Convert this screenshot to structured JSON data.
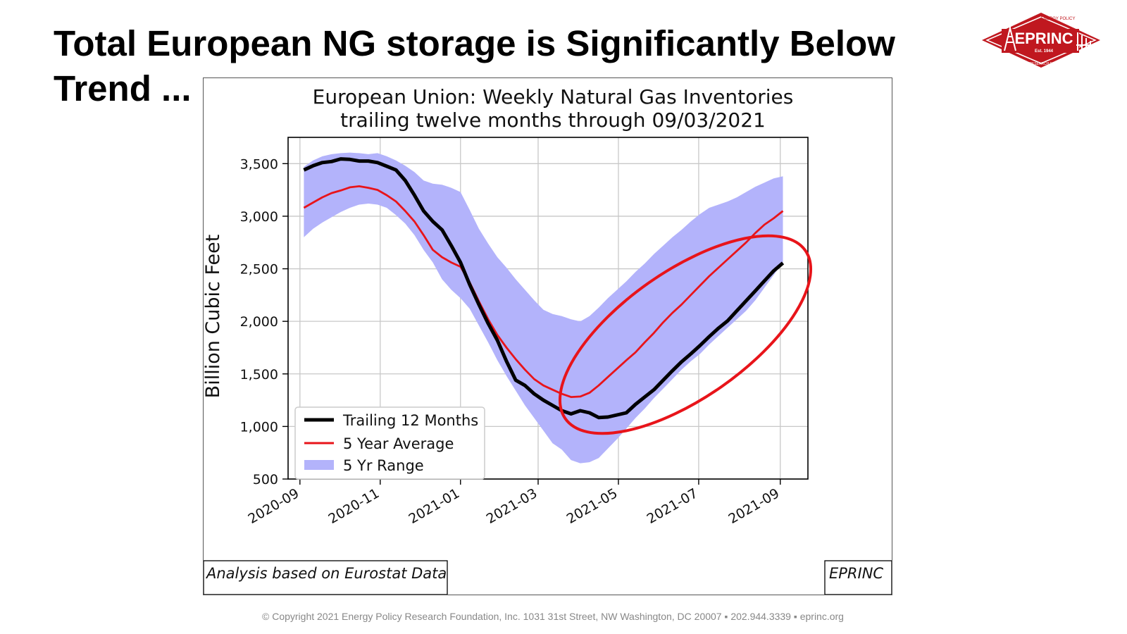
{
  "slide": {
    "title": "Total European NG storage is Significantly Below Trend ...",
    "footer": "© Copyright 2021 Energy Policy Research Foundation, Inc. 1031 31st Street, NW Washington, DC 20007 ▪ 202.944.3339 ▪ eprinc.org"
  },
  "logo": {
    "name": "EPRINC",
    "top_text": "ENERGY POLICY",
    "est": "Est. 1944",
    "bottom_text": "RESEARCH FOUNDATION INC.",
    "color": "#c0181f"
  },
  "figure": {
    "source_note": "Analysis based on Eurostat Data",
    "brand_note": "EPRINC"
  },
  "colors": {
    "trailing": "#000000",
    "average": "#e8141a",
    "range_fill": "#b3b3fb",
    "highlight_ellipse": "#e8141a"
  },
  "chart_data": {
    "type": "line",
    "title": "European Union: Weekly Natural Gas Inventories",
    "subtitle": "trailing twelve months through 09/03/2021",
    "ylabel": "Billion Cubic Feet",
    "xlabel": "",
    "ylim": [
      500,
      3750
    ],
    "xlim": [
      "2020-08-23",
      "2021-09-22"
    ],
    "yticks": [
      500,
      1000,
      1500,
      2000,
      2500,
      3000,
      3500
    ],
    "ytick_labels": [
      "500",
      "1,000",
      "1,500",
      "2,000",
      "2,500",
      "3,000",
      "3,500"
    ],
    "xticks": [
      "2020-09-01",
      "2020-11-01",
      "2021-01-01",
      "2021-03-01",
      "2021-05-01",
      "2021-07-01",
      "2021-09-01"
    ],
    "xtick_labels": [
      "2020-09",
      "2020-11",
      "2021-01",
      "2021-03",
      "2021-05",
      "2021-07",
      "2021-09"
    ],
    "grid": true,
    "legend_position": "lower-left",
    "dates": [
      "2020-09-04",
      "2020-09-11",
      "2020-09-18",
      "2020-09-25",
      "2020-10-02",
      "2020-10-09",
      "2020-10-16",
      "2020-10-23",
      "2020-10-30",
      "2020-11-06",
      "2020-11-13",
      "2020-11-20",
      "2020-11-27",
      "2020-12-04",
      "2020-12-11",
      "2020-12-18",
      "2020-12-25",
      "2021-01-01",
      "2021-01-08",
      "2021-01-15",
      "2021-01-22",
      "2021-01-29",
      "2021-02-05",
      "2021-02-12",
      "2021-02-19",
      "2021-02-26",
      "2021-03-05",
      "2021-03-12",
      "2021-03-19",
      "2021-03-26",
      "2021-04-02",
      "2021-04-09",
      "2021-04-16",
      "2021-04-23",
      "2021-04-30",
      "2021-05-07",
      "2021-05-14",
      "2021-05-21",
      "2021-05-28",
      "2021-06-04",
      "2021-06-11",
      "2021-06-18",
      "2021-06-25",
      "2021-07-02",
      "2021-07-09",
      "2021-07-16",
      "2021-07-23",
      "2021-07-30",
      "2021-08-06",
      "2021-08-13",
      "2021-08-20",
      "2021-08-27",
      "2021-09-03"
    ],
    "series": [
      {
        "name": "Trailing 12 Months",
        "values": [
          3440,
          3480,
          3510,
          3520,
          3545,
          3540,
          3525,
          3525,
          3510,
          3475,
          3440,
          3340,
          3200,
          3050,
          2950,
          2870,
          2720,
          2560,
          2350,
          2160,
          1980,
          1820,
          1620,
          1440,
          1390,
          1310,
          1250,
          1200,
          1150,
          1120,
          1150,
          1130,
          1085,
          1090,
          1110,
          1130,
          1210,
          1280,
          1350,
          1440,
          1530,
          1615,
          1690,
          1770,
          1855,
          1935,
          2005,
          2100,
          2195,
          2290,
          2385,
          2480,
          2555
        ]
      },
      {
        "name": "5 Year Average",
        "values": [
          3080,
          3130,
          3180,
          3220,
          3245,
          3275,
          3285,
          3270,
          3250,
          3200,
          3140,
          3050,
          2950,
          2820,
          2680,
          2610,
          2560,
          2520,
          2370,
          2190,
          2020,
          1870,
          1750,
          1640,
          1540,
          1450,
          1390,
          1350,
          1310,
          1280,
          1285,
          1320,
          1390,
          1470,
          1550,
          1630,
          1705,
          1800,
          1890,
          1990,
          2080,
          2160,
          2250,
          2340,
          2430,
          2510,
          2590,
          2670,
          2750,
          2840,
          2920,
          2980,
          3050
        ]
      },
      {
        "name": "5 Yr Range",
        "type": "area",
        "upper": [
          3470,
          3530,
          3570,
          3590,
          3600,
          3605,
          3600,
          3590,
          3600,
          3570,
          3530,
          3480,
          3420,
          3340,
          3310,
          3300,
          3270,
          3230,
          3060,
          2880,
          2740,
          2610,
          2510,
          2400,
          2300,
          2200,
          2110,
          2070,
          2050,
          2020,
          2000,
          2050,
          2130,
          2220,
          2300,
          2380,
          2470,
          2550,
          2640,
          2720,
          2800,
          2870,
          2950,
          3020,
          3080,
          3110,
          3140,
          3180,
          3230,
          3280,
          3320,
          3360,
          3380
        ],
        "lower": [
          2800,
          2880,
          2940,
          2990,
          3040,
          3080,
          3110,
          3120,
          3110,
          3080,
          3010,
          2930,
          2820,
          2680,
          2560,
          2400,
          2300,
          2220,
          2120,
          1960,
          1800,
          1630,
          1480,
          1340,
          1200,
          1080,
          960,
          840,
          780,
          680,
          650,
          660,
          700,
          790,
          880,
          980,
          1080,
          1170,
          1270,
          1360,
          1450,
          1540,
          1620,
          1690,
          1780,
          1860,
          1940,
          2020,
          2100,
          2200,
          2320,
          2440,
          2560
        ]
      }
    ],
    "legend_labels": [
      "Trailing 12 Months",
      "5 Year Average",
      "5 Yr Range"
    ]
  }
}
